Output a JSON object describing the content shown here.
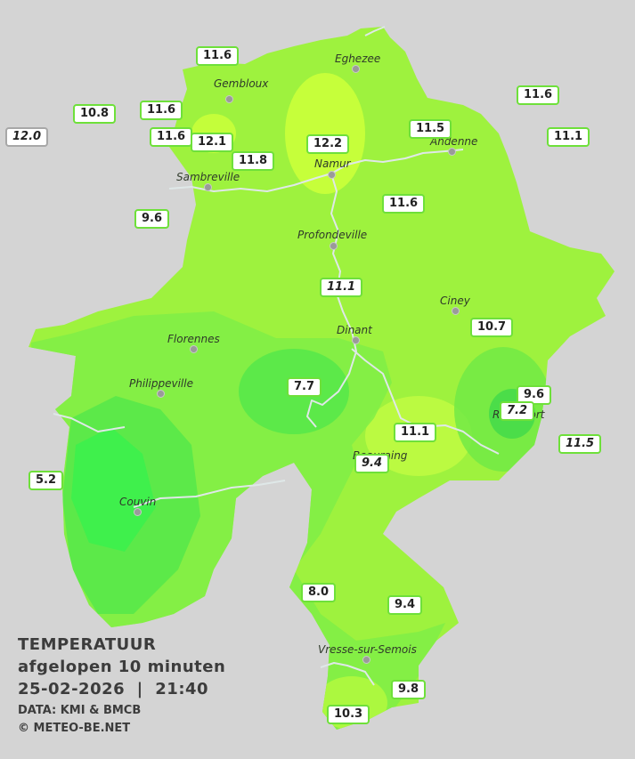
{
  "legend": {
    "title": "TEMPERATUUR",
    "subtitle": "afgelopen 10 minuten",
    "datetime": "25-02-2026  |  21:40",
    "data_source": "DATA: KMI & BMCB",
    "copyright": "© METEO-BE.NET"
  },
  "colors": {
    "background": "#d4d4d4",
    "base": "#9ef23e",
    "warm": "#c8ff3a",
    "cool": "#55e84a",
    "coldest": "#36f24e",
    "badge_border": "#6ee03a",
    "river": "#d9e6e6"
  },
  "towns": [
    {
      "name": "Eghezee"
    },
    {
      "name": "Gembloux"
    },
    {
      "name": "Andenne"
    },
    {
      "name": "Namur"
    },
    {
      "name": "Sambreville"
    },
    {
      "name": "Profondeville"
    },
    {
      "name": "Ciney"
    },
    {
      "name": "Dinant"
    },
    {
      "name": "Florennes"
    },
    {
      "name": "Philippeville"
    },
    {
      "name": "Rochefort"
    },
    {
      "name": "Beauraing"
    },
    {
      "name": "Couvin"
    },
    {
      "name": "Vresse-sur-Semois"
    }
  ],
  "stations": [
    {
      "value": "11.6"
    },
    {
      "value": "10.8"
    },
    {
      "value": "11.6"
    },
    {
      "value": "12.0"
    },
    {
      "value": "11.6"
    },
    {
      "value": "12.1"
    },
    {
      "value": "12.2"
    },
    {
      "value": "11.8"
    },
    {
      "value": "11.5"
    },
    {
      "value": "11.6"
    },
    {
      "value": "11.1"
    },
    {
      "value": "9.6"
    },
    {
      "value": "11.6"
    },
    {
      "value": "11.1"
    },
    {
      "value": "10.7"
    },
    {
      "value": "7.7"
    },
    {
      "value": "9.6"
    },
    {
      "value": "7.2"
    },
    {
      "value": "11.1"
    },
    {
      "value": "11.5"
    },
    {
      "value": "9.4"
    },
    {
      "value": "5.2"
    },
    {
      "value": "8.0"
    },
    {
      "value": "9.4"
    },
    {
      "value": "9.8"
    },
    {
      "value": "10.3"
    }
  ]
}
